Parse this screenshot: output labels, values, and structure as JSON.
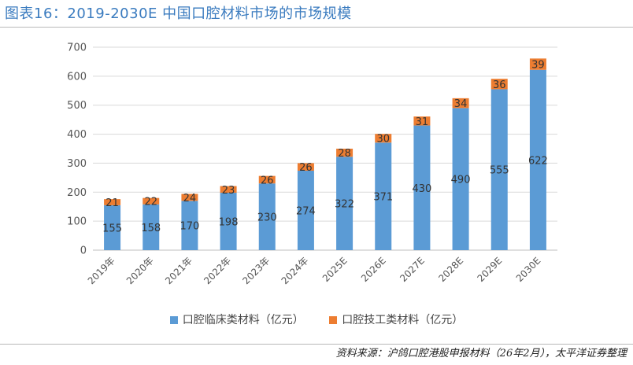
{
  "header": {
    "title": "图表16：2019-2030E 中国口腔材料市场的市场规模"
  },
  "footer": {
    "source": "资料来源：沪鸽口腔港股申报材料（26年2月），太平洋证券整理"
  },
  "chart_data": {
    "type": "bar",
    "stacked": true,
    "categories": [
      "2019年",
      "2020年",
      "2021年",
      "2022年",
      "2023年",
      "2024年",
      "2025E",
      "2026E",
      "2027E",
      "2028E",
      "2029E",
      "2030E"
    ],
    "series": [
      {
        "name": "口腔临床类材料（亿元）",
        "color": "#5b9bd5",
        "values": [
          155,
          158,
          170,
          198,
          230,
          274,
          322,
          371,
          430,
          490,
          555,
          622
        ]
      },
      {
        "name": "口腔技工类材料（亿元）",
        "color": "#ed7d31",
        "values": [
          21,
          22,
          24,
          23,
          26,
          26,
          28,
          30,
          31,
          34,
          36,
          39
        ]
      }
    ],
    "yticks": [
      0,
      100,
      200,
      300,
      400,
      500,
      600,
      700
    ],
    "ylim": [
      0,
      700
    ],
    "grid": true,
    "legend_position": "bottom"
  }
}
